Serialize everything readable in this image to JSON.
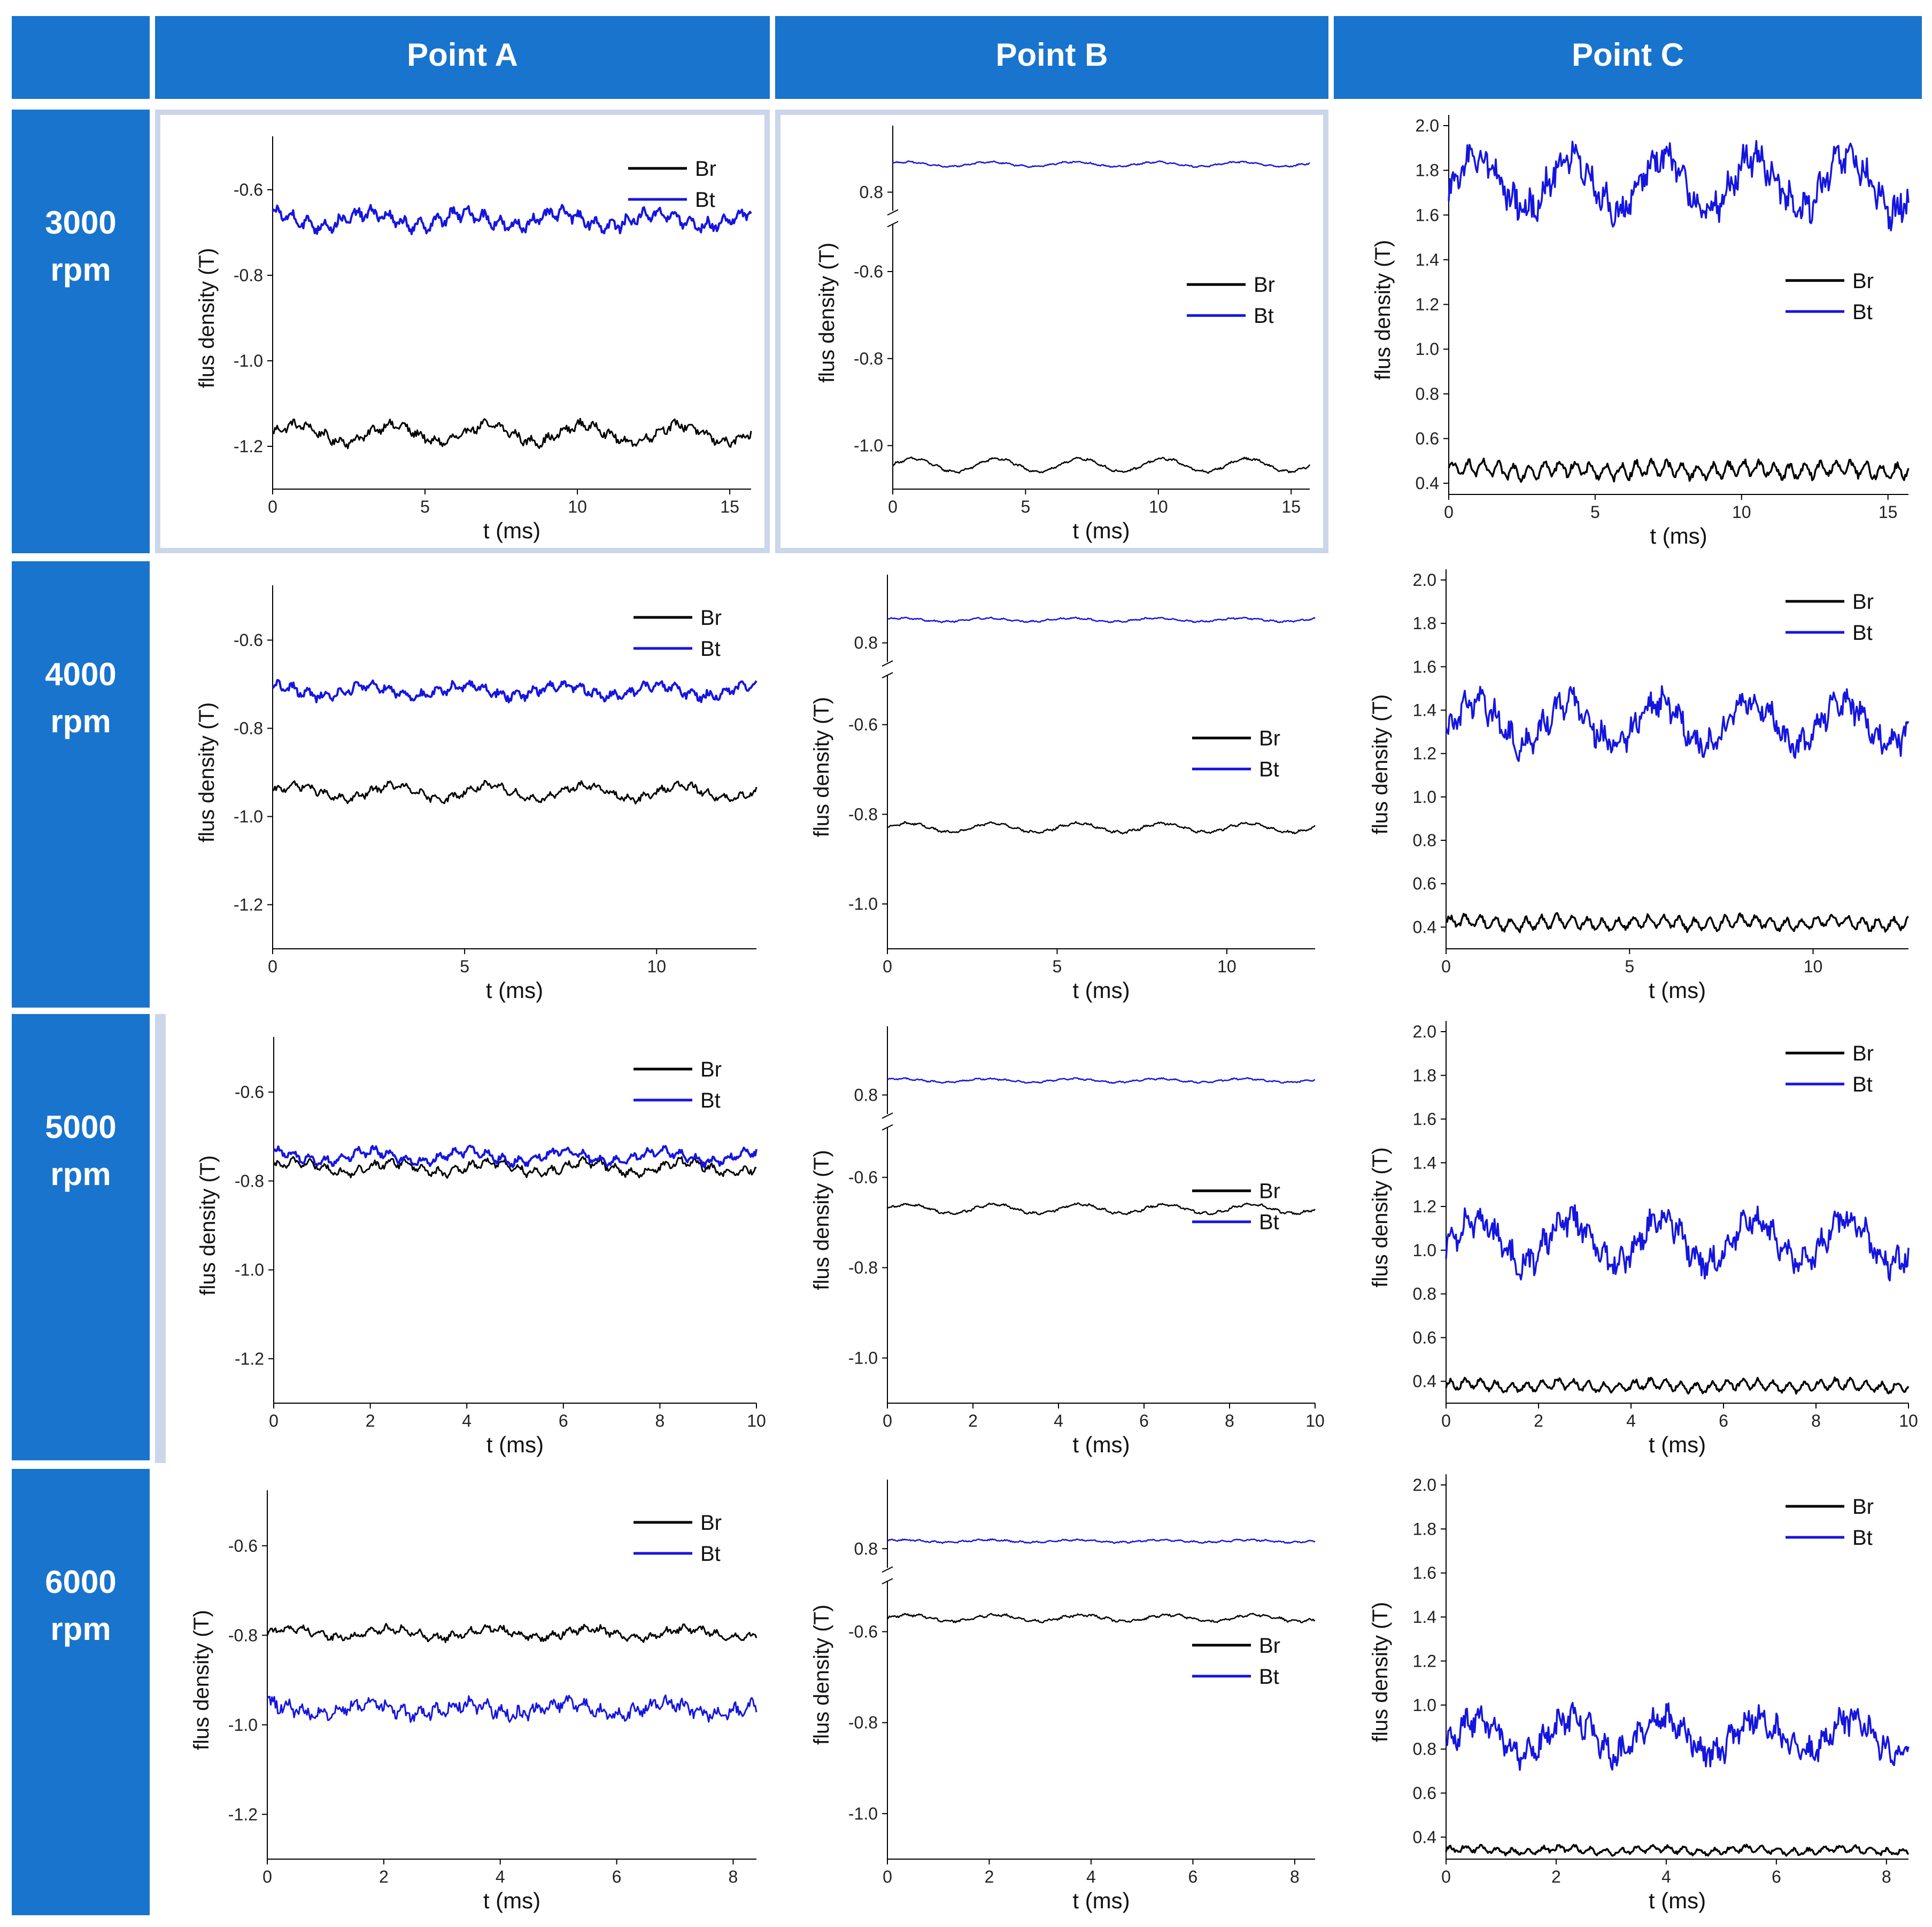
{
  "header": {
    "columns": [
      "Point A",
      "Point B",
      "Point C"
    ],
    "rows": [
      [
        "3000",
        "rpm"
      ],
      [
        "4000",
        "rpm"
      ],
      [
        "5000",
        "rpm"
      ],
      [
        "6000",
        "rpm"
      ]
    ]
  },
  "colors": {
    "header_bg": "#1874CD",
    "br": "#000000",
    "bt": "#1515E0",
    "frame": "#CBD6EA"
  },
  "chart_data": [
    {
      "type": "line",
      "id": "3000-A",
      "xlabel": "t (ms)",
      "ylabel": "flus density (T)",
      "xlim": [
        0,
        15.7
      ],
      "ylim": [
        -1.3,
        -0.5
      ],
      "xticks": [
        0,
        5,
        10,
        15
      ],
      "yticks": [
        -0.6,
        -0.8,
        -1.0,
        -1.2
      ],
      "legend": "top-right",
      "series": [
        {
          "name": "Br",
          "mean": -1.17,
          "amp": 0.02,
          "period": 3.14,
          "phase": 0,
          "noise": 0.008,
          "ripple": 0.008,
          "width": 3
        },
        {
          "name": "Bt",
          "mean": -0.67,
          "amp": 0.015,
          "period": 3.14,
          "phase": 1.5,
          "noise": 0.01,
          "ripple": 0.012,
          "width": 4
        }
      ]
    },
    {
      "type": "line",
      "id": "3000-B",
      "xlabel": "t (ms)",
      "ylabel": "flus density (T)",
      "xlim": [
        0,
        15.7
      ],
      "ylim": [
        -1.1,
        0.9
      ],
      "xticks": [
        0,
        5,
        10,
        15
      ],
      "yticks": [
        0.8,
        -0.6,
        -0.8,
        -1.0
      ],
      "axis_break": [
        -0.5,
        0.75
      ],
      "legend": "middle-right",
      "series": [
        {
          "name": "Br",
          "mean": -1.045,
          "amp": 0.015,
          "period": 3.14,
          "phase": 0,
          "noise": 0.002,
          "ripple": 0.002,
          "width": 2.5
        },
        {
          "name": "Bt",
          "mean": 0.85,
          "amp": 0.004,
          "period": 3.14,
          "phase": 0.5,
          "noise": 0.001,
          "ripple": 0.001,
          "width": 2.5
        }
      ]
    },
    {
      "type": "line",
      "id": "3000-C",
      "xlabel": "t (ms)",
      "ylabel": "flus density (T)",
      "xlim": [
        0,
        15.7
      ],
      "ylim": [
        0.35,
        2.0
      ],
      "xticks": [
        0,
        5,
        10,
        15
      ],
      "yticks": [
        0.4,
        0.6,
        0.8,
        1.0,
        1.2,
        1.4,
        1.6,
        1.8,
        2.0
      ],
      "legend": "middle-right",
      "series": [
        {
          "name": "Br",
          "mean": 0.46,
          "amp": 0.01,
          "period": 3.14,
          "phase": 0,
          "noise": 0.015,
          "ripple": 0.03,
          "width": 3.5
        },
        {
          "name": "Bt",
          "mean": 1.74,
          "amp": 0.12,
          "period": 3.14,
          "phase": -0.5,
          "noise": 0.06,
          "ripple": 0.04,
          "width": 3.5
        }
      ]
    },
    {
      "type": "line",
      "id": "4000-A",
      "xlabel": "t (ms)",
      "ylabel": "flus density (T)",
      "xlim": [
        0,
        12.6
      ],
      "ylim": [
        -1.3,
        -0.5
      ],
      "xticks": [
        0,
        5,
        10
      ],
      "yticks": [
        -0.6,
        -0.8,
        -1.0,
        -1.2
      ],
      "legend": "top-right",
      "series": [
        {
          "name": "Br",
          "mean": -0.945,
          "amp": 0.015,
          "period": 2.5,
          "phase": 0,
          "noise": 0.006,
          "ripple": 0.006,
          "width": 3
        },
        {
          "name": "Bt",
          "mean": -0.715,
          "amp": 0.012,
          "period": 2.5,
          "phase": 1.5,
          "noise": 0.008,
          "ripple": 0.008,
          "width": 4
        }
      ]
    },
    {
      "type": "line",
      "id": "4000-B",
      "xlabel": "t (ms)",
      "ylabel": "flus density (T)",
      "xlim": [
        0,
        12.6
      ],
      "ylim": [
        -1.1,
        0.9
      ],
      "xticks": [
        0,
        5,
        10
      ],
      "yticks": [
        0.8,
        -0.6,
        -0.8,
        -1.0
      ],
      "axis_break": [
        -0.5,
        0.75
      ],
      "legend": "middle-right",
      "series": [
        {
          "name": "Br",
          "mean": -0.83,
          "amp": 0.01,
          "period": 2.5,
          "phase": 0,
          "noise": 0.002,
          "ripple": 0.002,
          "width": 2.5
        },
        {
          "name": "Bt",
          "mean": 0.84,
          "amp": 0.003,
          "period": 2.5,
          "phase": 0.5,
          "noise": 0.001,
          "ripple": 0.001,
          "width": 2.5
        }
      ]
    },
    {
      "type": "line",
      "id": "4000-C",
      "xlabel": "t (ms)",
      "ylabel": "flus density (T)",
      "xlim": [
        0,
        12.6
      ],
      "ylim": [
        0.3,
        2.0
      ],
      "xticks": [
        0,
        5,
        10
      ],
      "yticks": [
        0.4,
        0.6,
        0.8,
        1.0,
        1.2,
        1.4,
        1.6,
        1.8,
        2.0
      ],
      "legend": "top-right",
      "series": [
        {
          "name": "Br",
          "mean": 0.42,
          "amp": 0.01,
          "period": 2.5,
          "phase": 0,
          "noise": 0.012,
          "ripple": 0.025,
          "width": 3.5
        },
        {
          "name": "Bt",
          "mean": 1.34,
          "amp": 0.1,
          "period": 2.5,
          "phase": -0.5,
          "noise": 0.05,
          "ripple": 0.035,
          "width": 3.5
        }
      ]
    },
    {
      "type": "line",
      "id": "5000-A",
      "xlabel": "t (ms)",
      "ylabel": "flus density (T)",
      "xlim": [
        0,
        10
      ],
      "ylim": [
        -1.3,
        -0.5
      ],
      "xticks": [
        0,
        2,
        4,
        6,
        8,
        10
      ],
      "yticks": [
        -0.6,
        -0.8,
        -1.0,
        -1.2
      ],
      "legend": "top-right",
      "series": [
        {
          "name": "Br",
          "mean": -0.77,
          "amp": 0.012,
          "period": 2.0,
          "phase": 0,
          "noise": 0.006,
          "ripple": 0.008,
          "width": 3
        },
        {
          "name": "Bt",
          "mean": -0.745,
          "amp": 0.012,
          "period": 2.0,
          "phase": 1.5,
          "noise": 0.006,
          "ripple": 0.008,
          "width": 4
        }
      ]
    },
    {
      "type": "line",
      "id": "5000-B",
      "xlabel": "t (ms)",
      "ylabel": "flus density (T)",
      "xlim": [
        0,
        10
      ],
      "ylim": [
        -1.1,
        0.9
      ],
      "xticks": [
        0,
        2,
        4,
        6,
        8,
        10
      ],
      "yticks": [
        0.8,
        -0.6,
        -0.8,
        -1.0
      ],
      "axis_break": [
        -0.5,
        0.75
      ],
      "legend": "middle-right",
      "series": [
        {
          "name": "Br",
          "mean": -0.67,
          "amp": 0.01,
          "period": 2.0,
          "phase": 0,
          "noise": 0.002,
          "ripple": 0.002,
          "width": 2.5
        },
        {
          "name": "Bt",
          "mean": 0.825,
          "amp": 0.003,
          "period": 2.0,
          "phase": 0.5,
          "noise": 0.001,
          "ripple": 0.001,
          "width": 2.5
        }
      ]
    },
    {
      "type": "line",
      "id": "5000-C",
      "xlabel": "t (ms)",
      "ylabel": "flus density (T)",
      "xlim": [
        0,
        10
      ],
      "ylim": [
        0.3,
        2.0
      ],
      "xticks": [
        0,
        2,
        4,
        6,
        8,
        10
      ],
      "yticks": [
        0.4,
        0.6,
        0.8,
        1.0,
        1.2,
        1.4,
        1.6,
        1.8,
        2.0
      ],
      "legend": "top-right",
      "series": [
        {
          "name": "Br",
          "mean": 0.38,
          "amp": 0.01,
          "period": 2.0,
          "phase": 0,
          "noise": 0.01,
          "ripple": 0.02,
          "width": 3.5
        },
        {
          "name": "Bt",
          "mean": 1.04,
          "amp": 0.1,
          "period": 2.0,
          "phase": -0.5,
          "noise": 0.05,
          "ripple": 0.035,
          "width": 3.5
        }
      ]
    },
    {
      "type": "line",
      "id": "6000-A",
      "xlabel": "t (ms)",
      "ylabel": "flus density (T)",
      "xlim": [
        0,
        8.4
      ],
      "ylim": [
        -1.3,
        -0.5
      ],
      "xticks": [
        0,
        2,
        4,
        6,
        8
      ],
      "yticks": [
        -0.6,
        -0.8,
        -1.0,
        -1.2
      ],
      "legend": "top-right",
      "series": [
        {
          "name": "Br",
          "mean": -0.795,
          "amp": 0.01,
          "period": 1.7,
          "phase": 0,
          "noise": 0.006,
          "ripple": 0.006,
          "width": 3
        },
        {
          "name": "Bt",
          "mean": -0.965,
          "amp": 0.012,
          "period": 1.7,
          "phase": 1.5,
          "noise": 0.012,
          "ripple": 0.01,
          "width": 3
        }
      ]
    },
    {
      "type": "line",
      "id": "6000-B",
      "xlabel": "t (ms)",
      "ylabel": "flus density (T)",
      "xlim": [
        0,
        8.4
      ],
      "ylim": [
        -1.1,
        0.9
      ],
      "xticks": [
        0,
        2,
        4,
        6,
        8
      ],
      "yticks": [
        0.8,
        -0.6,
        -0.8,
        -1.0
      ],
      "axis_break": [
        -0.5,
        0.75
      ],
      "legend": "middle-right",
      "series": [
        {
          "name": "Br",
          "mean": -0.57,
          "amp": 0.007,
          "period": 1.7,
          "phase": 0,
          "noise": 0.002,
          "ripple": 0.002,
          "width": 2.5
        },
        {
          "name": "Bt",
          "mean": 0.813,
          "amp": 0.002,
          "period": 1.7,
          "phase": 0.5,
          "noise": 0.001,
          "ripple": 0.001,
          "width": 2.5
        }
      ]
    },
    {
      "type": "line",
      "id": "6000-C",
      "xlabel": "t (ms)",
      "ylabel": "flus density (T)",
      "xlim": [
        0,
        8.4
      ],
      "ylim": [
        0.3,
        2.0
      ],
      "xticks": [
        0,
        2,
        4,
        6,
        8
      ],
      "yticks": [
        0.4,
        0.6,
        0.8,
        1.0,
        1.2,
        1.4,
        1.6,
        1.8,
        2.0
      ],
      "legend": "top-right",
      "series": [
        {
          "name": "Br",
          "mean": 0.34,
          "amp": 0.008,
          "period": 1.7,
          "phase": 0,
          "noise": 0.008,
          "ripple": 0.012,
          "width": 3.5
        },
        {
          "name": "Bt",
          "mean": 0.86,
          "amp": 0.08,
          "period": 1.7,
          "phase": -0.5,
          "noise": 0.05,
          "ripple": 0.035,
          "width": 3.5
        }
      ]
    }
  ]
}
